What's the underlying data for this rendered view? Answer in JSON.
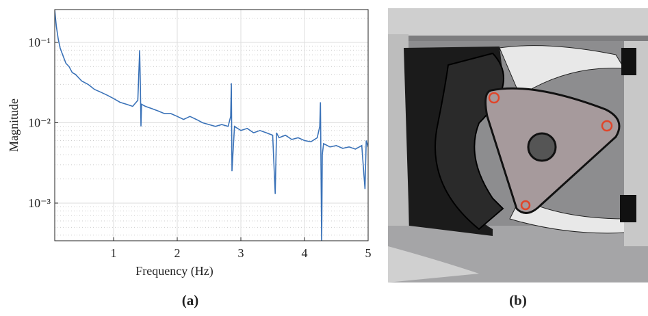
{
  "chart_data": {
    "type": "line",
    "xlabel": "Frequency (Hz)",
    "ylabel": "Magnitude",
    "log_y": true,
    "grid": true,
    "xlim": [
      0.075,
      5
    ],
    "ylim": [
      0.00034,
      0.256
    ],
    "xticks": [
      1,
      2,
      3,
      4,
      5
    ],
    "yticks": [
      {
        "value": 0.001,
        "label": "10⁻³"
      },
      {
        "value": 0.01,
        "label": "10⁻²"
      },
      {
        "value": 0.1,
        "label": "10⁻¹"
      }
    ],
    "minor_yticks": [
      0.0004,
      0.0005,
      0.0006,
      0.0007,
      0.0008,
      0.0009,
      0.002,
      0.003,
      0.004,
      0.005,
      0.006,
      0.007,
      0.008,
      0.009,
      0.02,
      0.03,
      0.04,
      0.05,
      0.06,
      0.07,
      0.08,
      0.09,
      0.2
    ],
    "x": [
      0.075,
      0.1,
      0.13,
      0.16,
      0.2,
      0.25,
      0.3,
      0.35,
      0.4,
      0.5,
      0.6,
      0.7,
      0.8,
      0.9,
      1.0,
      1.1,
      1.2,
      1.3,
      1.38,
      1.41,
      1.42,
      1.43,
      1.44,
      1.5,
      1.6,
      1.7,
      1.8,
      1.9,
      2.0,
      2.1,
      2.2,
      2.3,
      2.4,
      2.5,
      2.6,
      2.7,
      2.8,
      2.84,
      2.85,
      2.86,
      2.9,
      3.0,
      3.1,
      3.2,
      3.3,
      3.4,
      3.5,
      3.54,
      3.56,
      3.6,
      3.7,
      3.8,
      3.9,
      4.0,
      4.1,
      4.2,
      4.24,
      4.25,
      4.27,
      4.28,
      4.3,
      4.4,
      4.5,
      4.6,
      4.7,
      4.8,
      4.9,
      4.95,
      4.97,
      5.0
    ],
    "series": [
      {
        "name": "Magnitude",
        "color": "#3a72b8",
        "values": [
          0.25,
          0.16,
          0.11,
          0.085,
          0.07,
          0.055,
          0.05,
          0.042,
          0.04,
          0.033,
          0.03,
          0.026,
          0.024,
          0.022,
          0.02,
          0.018,
          0.017,
          0.016,
          0.019,
          0.08,
          0.03,
          0.009,
          0.017,
          0.016,
          0.015,
          0.014,
          0.013,
          0.013,
          0.012,
          0.011,
          0.012,
          0.011,
          0.01,
          0.0095,
          0.009,
          0.0095,
          0.009,
          0.012,
          0.031,
          0.0025,
          0.009,
          0.008,
          0.0085,
          0.0075,
          0.008,
          0.0075,
          0.007,
          0.0013,
          0.0075,
          0.0065,
          0.007,
          0.0062,
          0.0065,
          0.006,
          0.0058,
          0.0065,
          0.009,
          0.018,
          0.0003,
          0.004,
          0.0055,
          0.005,
          0.0052,
          0.0048,
          0.005,
          0.0047,
          0.0052,
          0.0015,
          0.006,
          0.005
        ]
      }
    ]
  },
  "captions": {
    "a": "(a)",
    "b": "(b)"
  }
}
